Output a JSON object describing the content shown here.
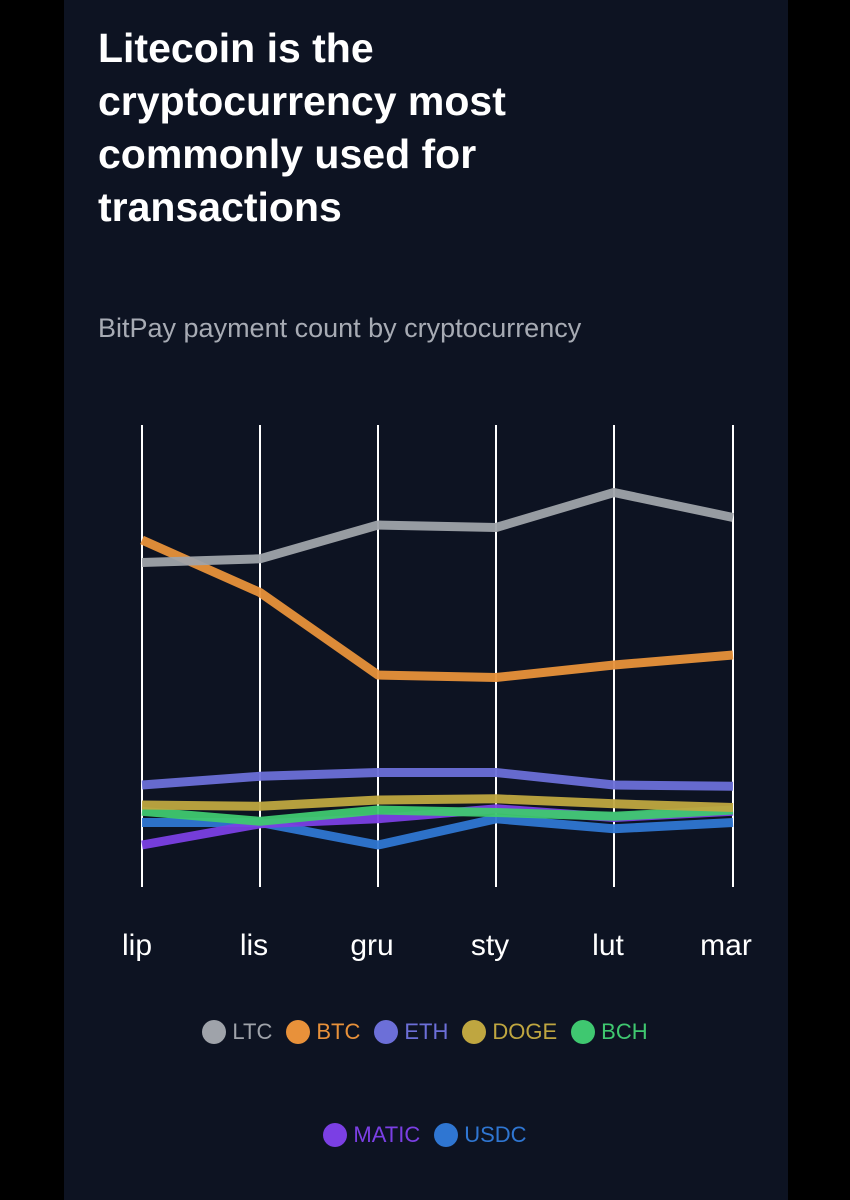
{
  "chart_data": {
    "type": "line",
    "title": "Litecoin is the cryptocurrency most commonly used for transactions",
    "subtitle": "BitPay payment count by cryptocurrency",
    "categories": [
      "lip",
      "lis",
      "gru",
      "sty",
      "lut",
      "mar"
    ],
    "grid": "vertical",
    "legend_position": "bottom",
    "series": [
      {
        "name": "LTC",
        "color": "#9fa3aa",
        "values": [
          86,
          89,
          116,
          114,
          142,
          122
        ]
      },
      {
        "name": "BTC",
        "color": "#e8913a",
        "values": [
          104,
          62,
          -4,
          -6,
          4,
          12
        ]
      },
      {
        "name": "ETH",
        "color": "#6c6fd8",
        "values": [
          -92,
          -85,
          -82,
          -82,
          -92,
          -93
        ]
      },
      {
        "name": "DOGE",
        "color": "#bfa640",
        "values": [
          -108,
          -109,
          -104,
          -103,
          -107,
          -110
        ]
      },
      {
        "name": "BCH",
        "color": "#3fc870",
        "values": [
          -113,
          -121,
          -112,
          -114,
          -117,
          -112
        ]
      },
      {
        "name": "MATIC",
        "color": "#7b3fe4",
        "values": [
          -140,
          -123,
          -119,
          -111,
          -118,
          -113
        ]
      },
      {
        "name": "USDC",
        "color": "#2f76d2",
        "values": [
          -122,
          -122,
          -140,
          -119,
          -127,
          -122
        ]
      }
    ]
  },
  "legend_rows": [
    [
      "LTC",
      "BTC",
      "ETH",
      "DOGE",
      "BCH"
    ],
    [
      "MATIC",
      "USDC"
    ]
  ]
}
